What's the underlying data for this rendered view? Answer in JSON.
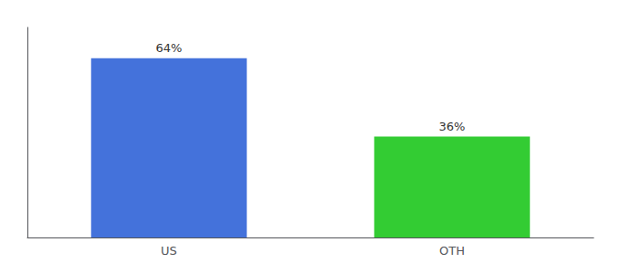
{
  "chart_data": {
    "type": "bar",
    "categories": [
      "US",
      "OTH"
    ],
    "values": [
      64,
      36
    ],
    "value_labels": [
      "64%",
      "36%"
    ],
    "data_labels": true,
    "colors": [
      "#4472db",
      "#33cc33"
    ],
    "ylim": [
      0,
      75
    ],
    "grid": false,
    "tick_labels": "x"
  }
}
